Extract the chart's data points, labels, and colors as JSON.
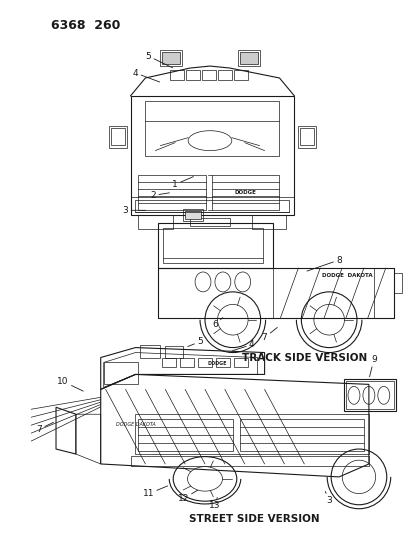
{
  "title_code": "6368  260",
  "background_color": "#ffffff",
  "line_color": "#1a1a1a",
  "track_side_label": "TRACK SIDE VERSION",
  "street_side_label": "STREET SIDE VERSION",
  "fig_width": 4.1,
  "fig_height": 5.33,
  "dpi": 100
}
